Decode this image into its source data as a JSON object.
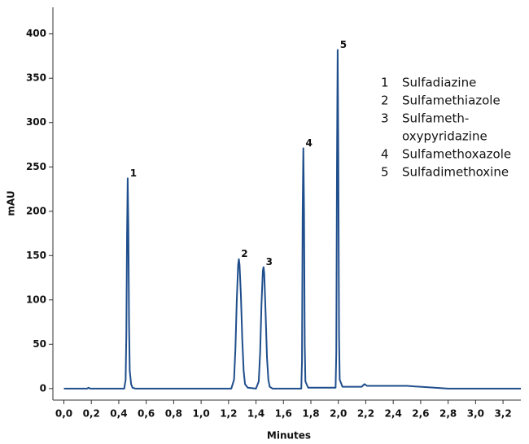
{
  "chart_data": {
    "type": "line",
    "color": "#1f4e8c",
    "x_label": "Minutes",
    "y_label": "mAU",
    "x": [
      0,
      0.17,
      0.18,
      0.19,
      0.44,
      0.45,
      0.455,
      0.46,
      0.465,
      0.47,
      0.475,
      0.48,
      0.49,
      0.5,
      0.52,
      1.22,
      1.24,
      1.25,
      1.26,
      1.27,
      1.275,
      1.28,
      1.29,
      1.3,
      1.31,
      1.32,
      1.34,
      1.4,
      1.42,
      1.43,
      1.44,
      1.45,
      1.455,
      1.46,
      1.47,
      1.48,
      1.49,
      1.5,
      1.52,
      1.73,
      1.735,
      1.74,
      1.745,
      1.75,
      1.755,
      1.76,
      1.78,
      1.98,
      1.985,
      1.99,
      1.995,
      2.0,
      2.005,
      2.01,
      2.03,
      2.17,
      2.19,
      2.21,
      2.5,
      2.6,
      2.8,
      3.33
    ],
    "values": [
      0,
      0,
      1,
      0,
      0,
      10,
      60,
      170,
      237,
      180,
      70,
      20,
      5,
      1,
      0,
      0,
      10,
      45,
      100,
      140,
      146,
      140,
      105,
      55,
      20,
      5,
      1,
      0,
      8,
      40,
      95,
      133,
      137,
      130,
      85,
      35,
      10,
      2,
      0,
      0,
      30,
      200,
      271,
      200,
      50,
      8,
      1,
      1,
      40,
      250,
      382,
      260,
      60,
      10,
      2,
      2,
      5,
      3,
      3,
      2,
      0,
      0
    ],
    "xlim": [
      -0.08,
      3.33
    ],
    "ylim": [
      -13,
      430
    ],
    "xticks": [
      {
        "value": 0,
        "label": "0,0"
      },
      {
        "value": 0.2,
        "label": "0,2"
      },
      {
        "value": 0.4,
        "label": "0,4"
      },
      {
        "value": 0.6,
        "label": "0,6"
      },
      {
        "value": 0.8,
        "label": "0,8"
      },
      {
        "value": 1.0,
        "label": "1,0"
      },
      {
        "value": 1.2,
        "label": "1,2"
      },
      {
        "value": 1.4,
        "label": "1,4"
      },
      {
        "value": 1.6,
        "label": "1,6"
      },
      {
        "value": 1.8,
        "label": "1,8"
      },
      {
        "value": 2.0,
        "label": "2,0"
      },
      {
        "value": 2.2,
        "label": "2,2"
      },
      {
        "value": 2.4,
        "label": "2,4"
      },
      {
        "value": 2.6,
        "label": "2,6"
      },
      {
        "value": 2.8,
        "label": "2,8"
      },
      {
        "value": 3.0,
        "label": "3,0"
      },
      {
        "value": 3.2,
        "label": "3,2"
      }
    ],
    "yticks": [
      0,
      50,
      100,
      150,
      200,
      250,
      300,
      350,
      400
    ],
    "annotations": [
      {
        "text": "1",
        "x": 0.465,
        "y": 237
      },
      {
        "text": "2",
        "x": 1.275,
        "y": 146
      },
      {
        "text": "3",
        "x": 1.455,
        "y": 137
      },
      {
        "text": "4",
        "x": 1.745,
        "y": 271
      },
      {
        "text": "5",
        "x": 1.995,
        "y": 382
      }
    ],
    "legend": [
      {
        "number": "1",
        "lines": [
          "Sulfadiazine"
        ]
      },
      {
        "number": "2",
        "lines": [
          "Sulfamethiazole"
        ]
      },
      {
        "number": "3",
        "lines": [
          "Sulfameth-",
          "oxypyridazine"
        ]
      },
      {
        "number": "4",
        "lines": [
          "Sulfamethoxazole"
        ]
      },
      {
        "number": "5",
        "lines": [
          "Sulfadimethoxine"
        ]
      }
    ]
  }
}
